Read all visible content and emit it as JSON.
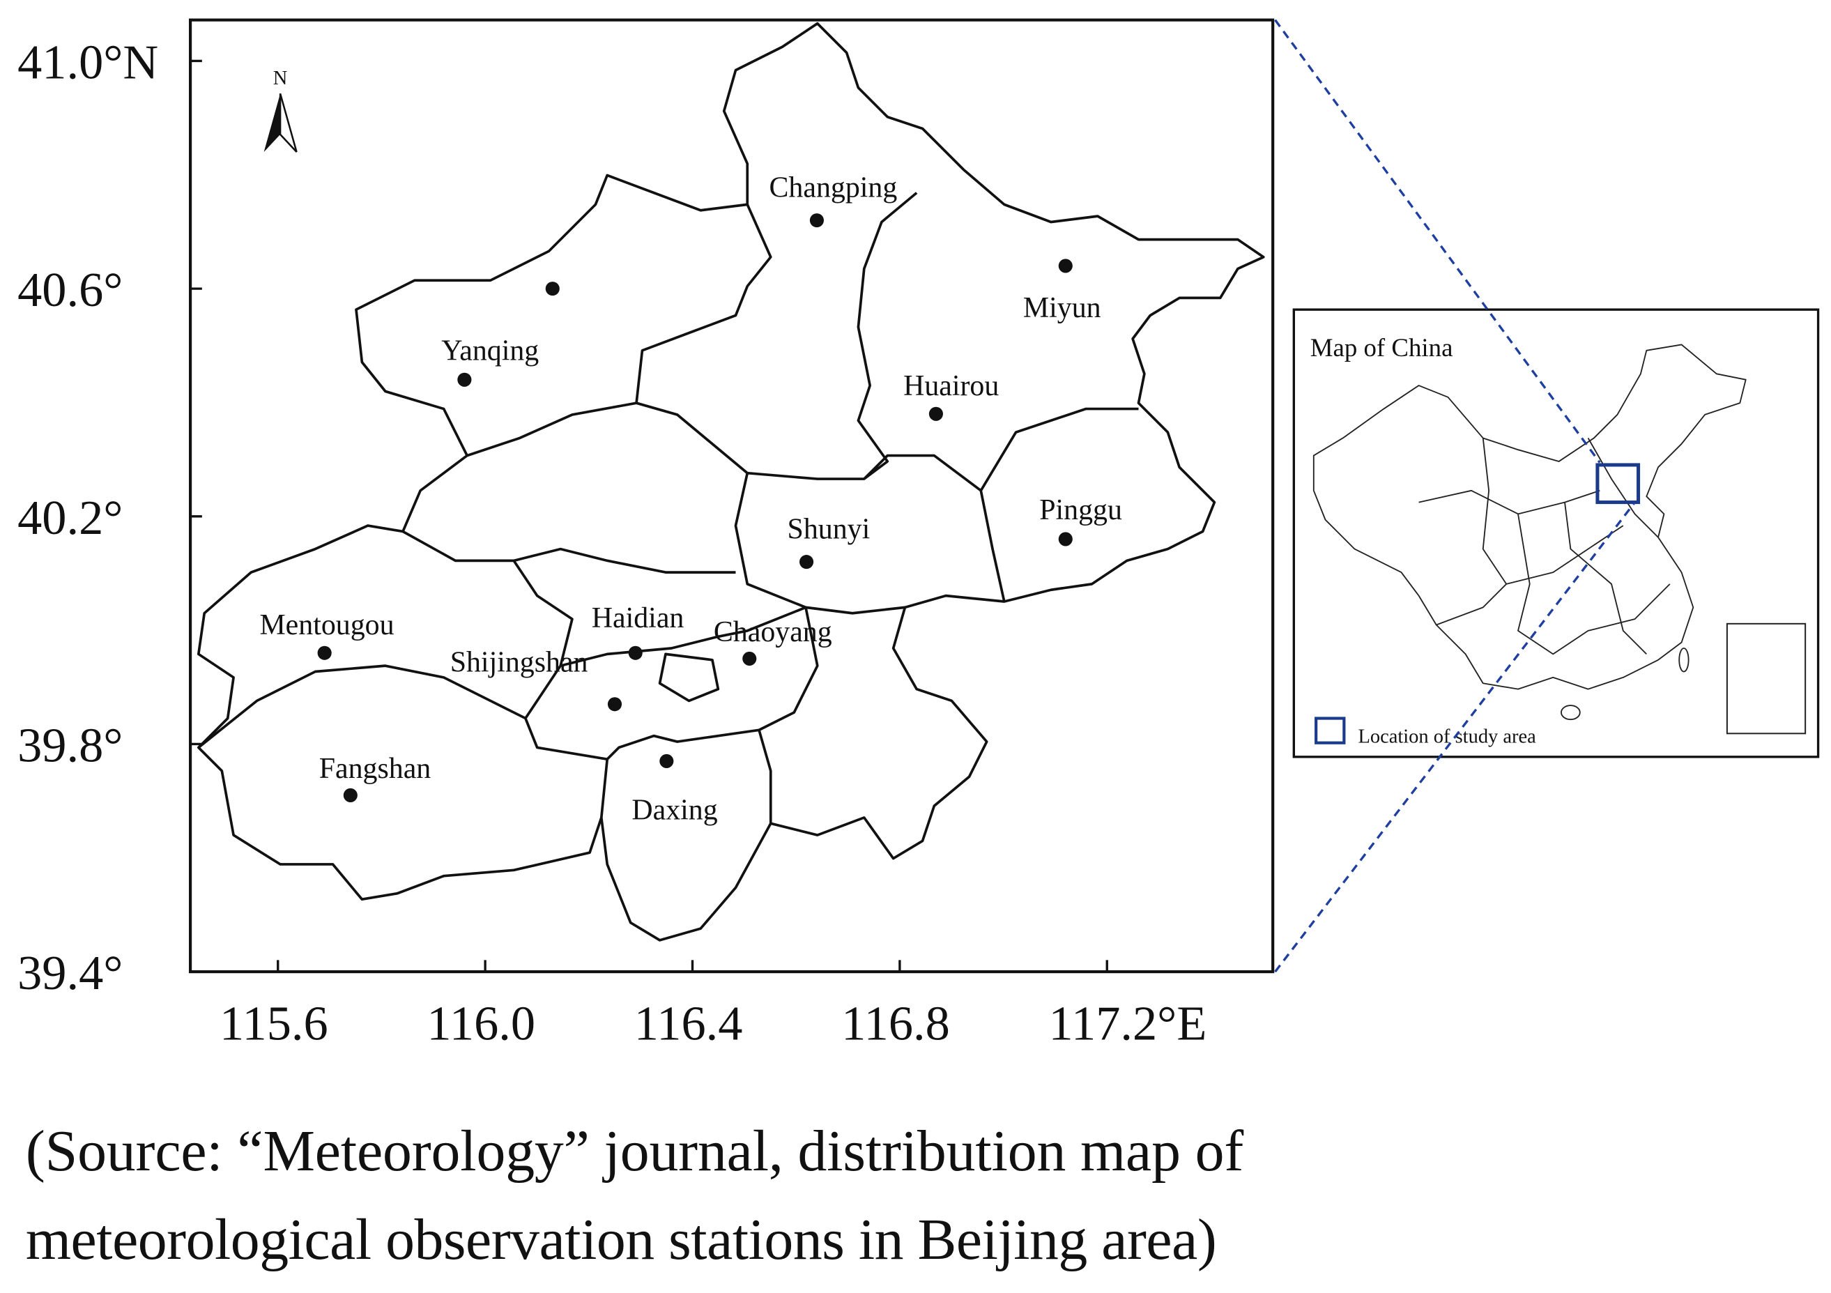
{
  "axes": {
    "xlim": [
      115.431,
      117.52
    ],
    "ylim": [
      39.4,
      41.072
    ],
    "xticks": [
      115.6,
      {
        "value": 116.0,
        "label": "116.0"
      },
      116.4,
      116.8,
      {
        "value": 117.2,
        "label": "117.2°E"
      }
    ],
    "yticks": [
      {
        "value": 41.0,
        "label": "41.0°N"
      },
      {
        "value": 40.6,
        "label": "40.6°"
      },
      {
        "value": 40.2,
        "label": "40.2°"
      },
      {
        "value": 39.8,
        "label": "39.8°"
      },
      {
        "value": 39.4,
        "label": "39.4°"
      }
    ]
  },
  "north_arrow": "N",
  "stations": [
    {
      "name": "Changping",
      "lon": 116.64,
      "lat": 40.72
    },
    {
      "name": "Miyun",
      "lon": 117.12,
      "lat": 40.64
    },
    {
      "name": null,
      "lon": 116.13,
      "lat": 40.6
    },
    {
      "name": "Yanqing",
      "lon": 115.96,
      "lat": 40.44
    },
    {
      "name": "Huairou",
      "lon": 116.87,
      "lat": 40.38
    },
    {
      "name": "Pinggu",
      "lon": 117.12,
      "lat": 40.16
    },
    {
      "name": "Shunyi",
      "lon": 116.62,
      "lat": 40.12
    },
    {
      "name": "Mentougou",
      "lon": 115.69,
      "lat": 39.96
    },
    {
      "name": "Haidian",
      "lon": 116.29,
      "lat": 39.96
    },
    {
      "name": "Chaoyang",
      "lon": 116.51,
      "lat": 39.95
    },
    {
      "name": "Shijingshan",
      "lon": 116.25,
      "lat": 39.87
    },
    {
      "name": "Daxing",
      "lon": 116.35,
      "lat": 39.77
    },
    {
      "name": "Fangshan",
      "lon": 115.74,
      "lat": 39.71
    }
  ],
  "inset": {
    "title": "Map of China",
    "legend": "Location of study area"
  },
  "caption": [
    "(Source: “Meteorology” journal, distribution map of",
    "meteorological observation stations in Beijing area)"
  ]
}
